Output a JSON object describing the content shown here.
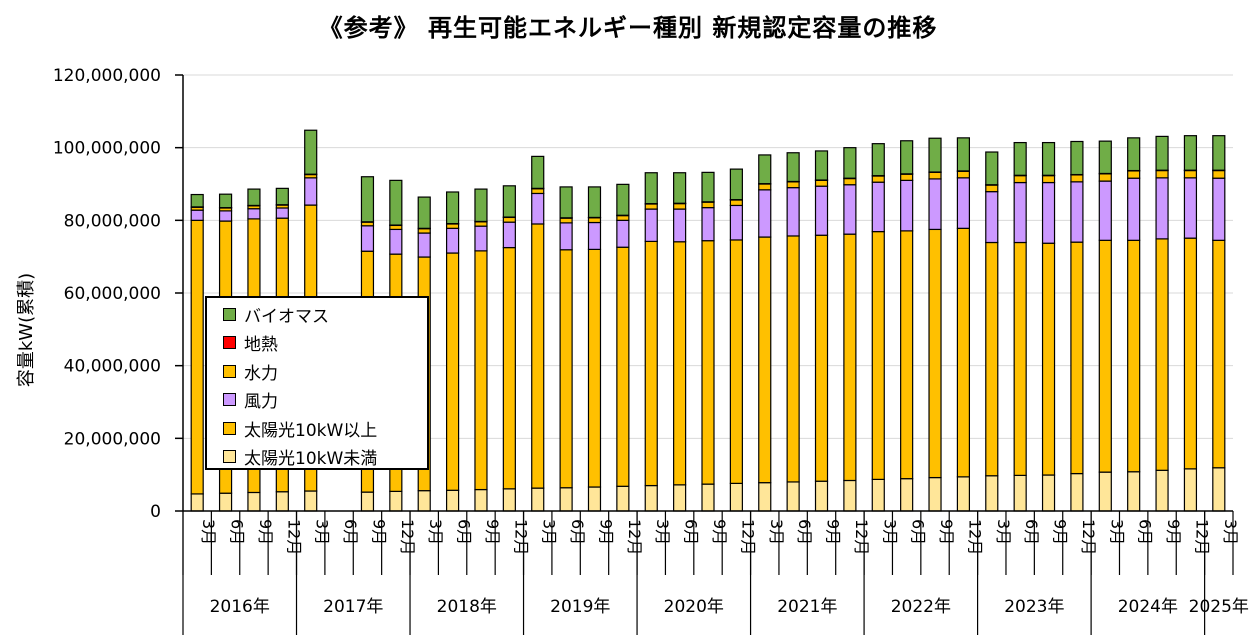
{
  "chart_data": {
    "type": "bar",
    "stacked": true,
    "title": "《参考》 再生可能エネルギー種別 新規認定容量の推移",
    "ylabel": "容量kW(累積)",
    "xlabel": "",
    "ylim": [
      0,
      120000000
    ],
    "yticks": [
      0,
      20000000,
      40000000,
      60000000,
      80000000,
      100000000,
      120000000
    ],
    "ytick_labels": [
      "0",
      "20,000,000",
      "40,000,000",
      "60,000,000",
      "80,000,000",
      "100,000,000",
      "120,000,000"
    ],
    "legend_position": "inside-left",
    "categories": [
      "3月",
      "6月",
      "9月",
      "12月",
      "3月",
      "6月",
      "9月",
      "12月",
      "3月",
      "6月",
      "9月",
      "12月",
      "3月",
      "6月",
      "9月",
      "12月",
      "3月",
      "6月",
      "9月",
      "12月",
      "3月",
      "6月",
      "9月",
      "12月",
      "3月",
      "6月",
      "9月",
      "12月",
      "3月",
      "6月",
      "9月",
      "12月",
      "3月",
      "6月",
      "9月",
      "12月",
      "3月"
    ],
    "year_groups": [
      {
        "label": "2016年",
        "count": 4
      },
      {
        "label": "2017年",
        "count": 4
      },
      {
        "label": "2018年",
        "count": 4
      },
      {
        "label": "2019年",
        "count": 4
      },
      {
        "label": "2020年",
        "count": 4
      },
      {
        "label": "2021年",
        "count": 4
      },
      {
        "label": "2022年",
        "count": 4
      },
      {
        "label": "2023年",
        "count": 4
      },
      {
        "label": "2024年",
        "count": 4
      },
      {
        "label": "2025年",
        "count": 1
      }
    ],
    "series": [
      {
        "name": "太陽光10kW未満",
        "color": "#ffe699",
        "values": [
          4700000,
          4900000,
          5100000,
          5300000,
          5500000,
          null,
          5200000,
          5400000,
          5600000,
          5700000,
          5900000,
          6100000,
          6300000,
          6400000,
          6600000,
          6800000,
          7000000,
          7200000,
          7400000,
          7600000,
          7800000,
          8000000,
          8200000,
          8400000,
          8700000,
          8900000,
          9200000,
          9400000,
          9700000,
          9800000,
          9900000,
          10300000,
          10700000,
          10800000,
          11200000,
          11600000,
          11900000
        ]
      },
      {
        "name": "太陽光10kW以上",
        "color": "#ffc000",
        "values": [
          75300000,
          74900000,
          75300000,
          75300000,
          78700000,
          null,
          66300000,
          65300000,
          64300000,
          65300000,
          65700000,
          66400000,
          72700000,
          65500000,
          65400000,
          65800000,
          67200000,
          66900000,
          67000000,
          67000000,
          67600000,
          67700000,
          67700000,
          67800000,
          68200000,
          68200000,
          68300000,
          68400000,
          64200000,
          64100000,
          63800000,
          63700000,
          63800000,
          63700000,
          63700000,
          63500000,
          62600000
        ]
      },
      {
        "name": "風力",
        "color": "#cc99ff",
        "values": [
          2800000,
          2800000,
          2800000,
          2800000,
          7500000,
          null,
          7000000,
          6800000,
          6600000,
          6800000,
          6800000,
          7000000,
          8400000,
          7400000,
          7400000,
          7400000,
          8900000,
          9000000,
          9100000,
          9500000,
          13000000,
          13300000,
          13500000,
          13600000,
          13600000,
          13900000,
          13900000,
          13900000,
          14000000,
          16500000,
          16700000,
          16600000,
          16300000,
          17100000,
          16800000,
          16600000,
          17100000
        ]
      },
      {
        "name": "水力",
        "color": "#ffc000",
        "values": [
          800000,
          800000,
          800000,
          800000,
          900000,
          null,
          1000000,
          1100000,
          1200000,
          1200000,
          1200000,
          1300000,
          1300000,
          1300000,
          1300000,
          1300000,
          1400000,
          1500000,
          1500000,
          1500000,
          1600000,
          1600000,
          1600000,
          1700000,
          1700000,
          1700000,
          1800000,
          1800000,
          1800000,
          1900000,
          1900000,
          1900000,
          2000000,
          2000000,
          2000000,
          2000000,
          2100000
        ]
      },
      {
        "name": "地熱",
        "color": "#ff0000",
        "values": [
          100000,
          100000,
          100000,
          100000,
          100000,
          null,
          100000,
          100000,
          100000,
          100000,
          100000,
          100000,
          100000,
          100000,
          100000,
          100000,
          100000,
          100000,
          100000,
          100000,
          100000,
          100000,
          100000,
          100000,
          100000,
          100000,
          100000,
          100000,
          100000,
          100000,
          100000,
          100000,
          100000,
          100000,
          100000,
          100000,
          100000
        ]
      },
      {
        "name": "バイオマス",
        "color": "#70ad47",
        "values": [
          3400000,
          3700000,
          4500000,
          4500000,
          12100000,
          null,
          12400000,
          12300000,
          8600000,
          8700000,
          8900000,
          8600000,
          8800000,
          8500000,
          8400000,
          8500000,
          8500000,
          8400000,
          8100000,
          8400000,
          7900000,
          7900000,
          8000000,
          8400000,
          8800000,
          9100000,
          9300000,
          9100000,
          9000000,
          9000000,
          9000000,
          9100000,
          8900000,
          9000000,
          9300000,
          9500000,
          9500000
        ]
      }
    ]
  }
}
